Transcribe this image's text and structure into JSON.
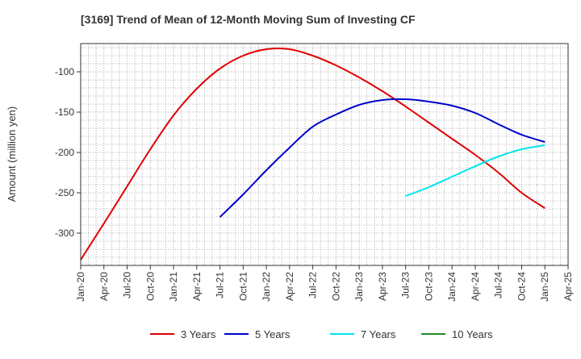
{
  "chart_data": {
    "type": "line",
    "title": "[3169]  Trend of Mean of 12-Month Moving Sum of Investing CF",
    "ylabel": "Amount (million yen)",
    "xlabel": "",
    "ylim": [
      -340,
      -65
    ],
    "yticks": [
      -100,
      -150,
      -200,
      -250,
      -300
    ],
    "x_tick_labels": [
      "Jan-20",
      "Apr-20",
      "Jul-20",
      "Oct-20",
      "Jan-21",
      "Apr-21",
      "Jul-21",
      "Oct-21",
      "Jan-22",
      "Apr-22",
      "Jul-22",
      "Oct-22",
      "Jan-23",
      "Apr-23",
      "Jul-23",
      "Oct-23",
      "Jan-24",
      "Apr-24",
      "Jul-24",
      "Oct-24",
      "Jan-25",
      "Apr-25"
    ],
    "grid": true,
    "legend_position": "bottom",
    "series": [
      {
        "name": "3 Years",
        "color": "#e00000",
        "points": [
          [
            "Jan-20",
            -333
          ],
          [
            "Apr-20",
            -288
          ],
          [
            "Jul-20",
            -242
          ],
          [
            "Oct-20",
            -196
          ],
          [
            "Jan-21",
            -154
          ],
          [
            "Apr-21",
            -121
          ],
          [
            "Jul-21",
            -96
          ],
          [
            "Oct-21",
            -80
          ],
          [
            "Jan-22",
            -72
          ],
          [
            "Apr-22",
            -72
          ],
          [
            "Jul-22",
            -80
          ],
          [
            "Oct-22",
            -92
          ],
          [
            "Jan-23",
            -107
          ],
          [
            "Apr-23",
            -124
          ],
          [
            "Jul-23",
            -143
          ],
          [
            "Oct-23",
            -163
          ],
          [
            "Jan-24",
            -183
          ],
          [
            "Apr-24",
            -203
          ],
          [
            "Jul-24",
            -225
          ],
          [
            "Oct-24",
            -250
          ],
          [
            "Jan-25",
            -269
          ]
        ]
      },
      {
        "name": "5 Years",
        "color": "#0000cc",
        "points": [
          [
            "Jul-21",
            -280
          ],
          [
            "Oct-21",
            -252
          ],
          [
            "Jan-22",
            -222
          ],
          [
            "Apr-22",
            -194
          ],
          [
            "Jul-22",
            -168
          ],
          [
            "Oct-22",
            -153
          ],
          [
            "Jan-23",
            -141
          ],
          [
            "Apr-23",
            -135
          ],
          [
            "Jul-23",
            -134
          ],
          [
            "Oct-23",
            -137
          ],
          [
            "Jan-24",
            -142
          ],
          [
            "Apr-24",
            -151
          ],
          [
            "Jul-24",
            -165
          ],
          [
            "Oct-24",
            -178
          ],
          [
            "Jan-25",
            -187
          ]
        ]
      },
      {
        "name": "7 Years",
        "color": "#00e5ee",
        "points": [
          [
            "Jul-23",
            -254
          ],
          [
            "Oct-23",
            -243
          ],
          [
            "Jan-24",
            -230
          ],
          [
            "Apr-24",
            -217
          ],
          [
            "Jul-24",
            -205
          ],
          [
            "Oct-24",
            -196
          ],
          [
            "Jan-25",
            -191
          ]
        ]
      },
      {
        "name": "10 Years",
        "color": "#228b22",
        "points": []
      }
    ]
  }
}
